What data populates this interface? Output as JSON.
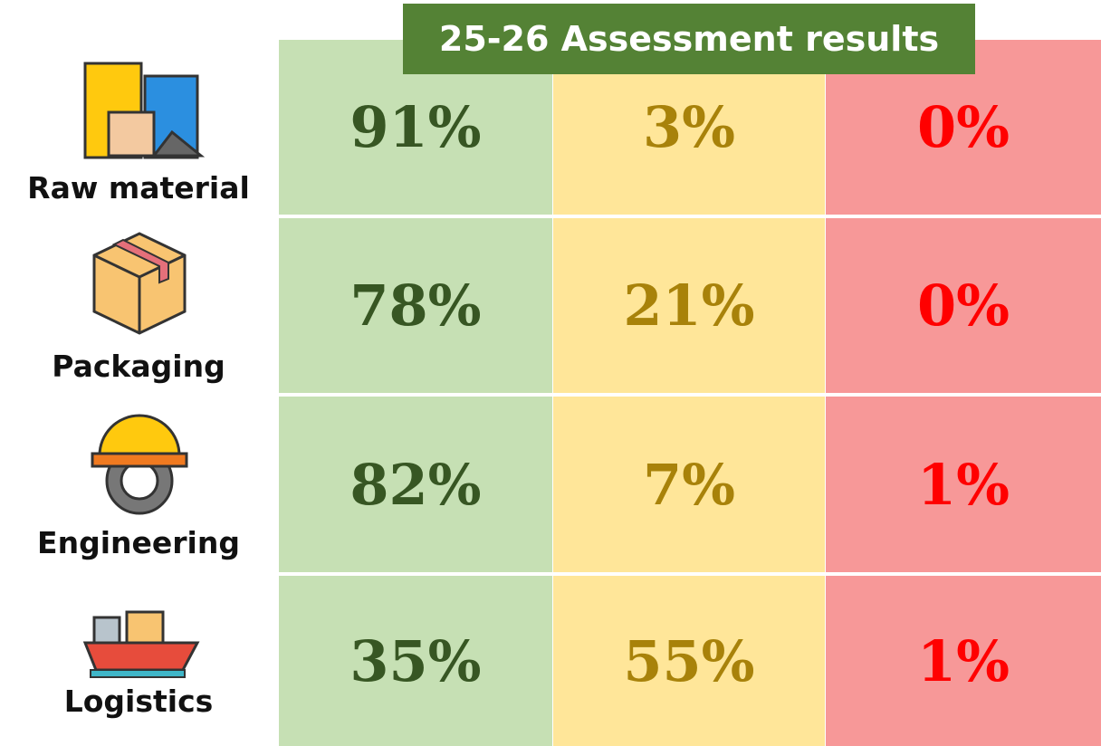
{
  "title": "25-26 Assessment results",
  "rows": [
    {
      "label": "Raw material",
      "cells": [
        "91%",
        "3%",
        "0%"
      ]
    },
    {
      "label": "Packaging",
      "cells": [
        "78%",
        "21%",
        "0%"
      ]
    },
    {
      "label": "Engineering",
      "cells": [
        "82%",
        "7%",
        "1%"
      ]
    },
    {
      "label": "Logistics",
      "cells": [
        "35%",
        "55%",
        "1%"
      ]
    }
  ]
}
